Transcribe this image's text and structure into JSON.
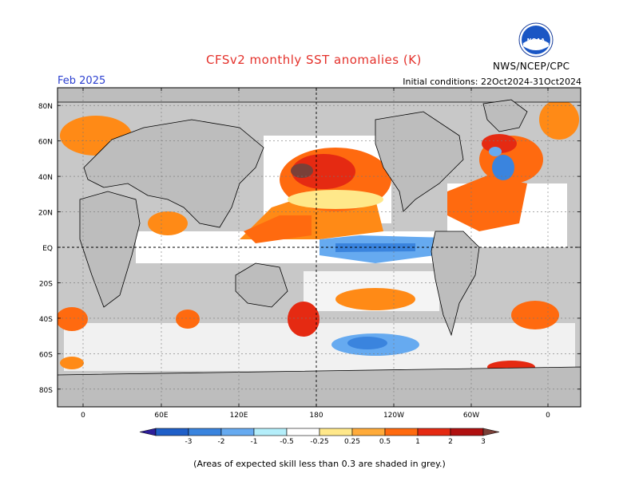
{
  "header": {
    "title": "CFSv2 monthly SST anomalies (K)",
    "valid_month": "Feb 2025",
    "initial_conditions": "Initial conditions: 22Oct2024-31Oct2024",
    "agency": "NWS/NCEP/CPC",
    "logo_text": "NOAA"
  },
  "map": {
    "lat_labels": [
      "80N",
      "60N",
      "40N",
      "20N",
      "EQ",
      "20S",
      "40S",
      "60S",
      "80S"
    ],
    "lon_labels": [
      "0",
      "60E",
      "120E",
      "180",
      "120W",
      "60W",
      "0"
    ],
    "colors": {
      "land": "#bdbdbd",
      "ocean_grey": "#c8c8c8",
      "neutral": "#ffffff"
    }
  },
  "colorbar": {
    "labels": [
      "-3",
      "-2",
      "-1",
      "-0.5",
      "-0.25",
      "0.25",
      "0.5",
      "1",
      "2",
      "3"
    ],
    "colors": [
      "#2d1e9a",
      "#1f5fc8",
      "#3a84de",
      "#66aaf0",
      "#b4eefa",
      "#ffffff",
      "#ffe88a",
      "#ffab3a",
      "#ff6a0f",
      "#e52a12",
      "#b01010",
      "#7a4038"
    ]
  },
  "footnote": "(Areas of expected skill less than 0.3 are shaded in grey.)"
}
